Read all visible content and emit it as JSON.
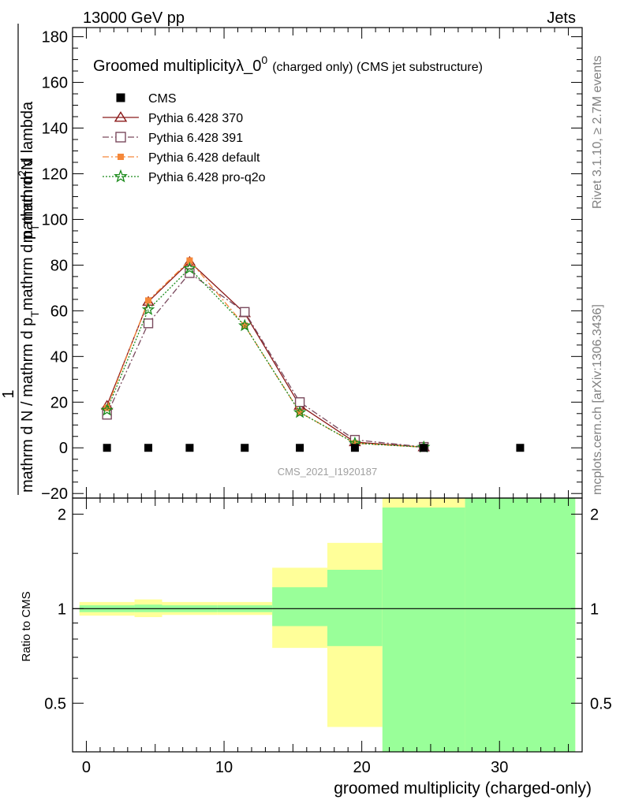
{
  "header": {
    "left": "13000 GeV pp",
    "right": "Jets"
  },
  "side_labels": {
    "rivet": "Rivet 3.1.10, ≥ 2.7M events",
    "mcplots": "mcplots.cern.ch [arXiv:1306.3436]"
  },
  "watermark": "CMS_2021_I1920187",
  "chart_data": [
    {
      "type": "line",
      "title_main": "Groomed multiplicityλ_0",
      "title_sup": "0",
      "title_suffix": "(charged only) (CMS jet substructure)",
      "ylabel_numerator": "1",
      "ylabel_fraction_top": "mathrm d",
      "ylabel_fraction_top_sup": "2",
      "ylabel_fraction_top_end": "N",
      "ylabel_denominator": "mathrm d N / mathrm d p",
      "ylabel_denominator_sub": "T",
      "ylabel_denominator_mid": "mathrm d p",
      "ylabel_denominator_mid_sub": "T",
      "ylabel_denominator_end": "mathrm d lambda",
      "xlim": [
        -1,
        36
      ],
      "ylim": [
        -22,
        184
      ],
      "yticks": [
        -20,
        0,
        20,
        40,
        60,
        80,
        100,
        120,
        140,
        160,
        180
      ],
      "legend": {
        "placement": "top-left"
      },
      "series": [
        {
          "name": "CMS",
          "color": "#000000",
          "marker": "filled-square",
          "line": "none",
          "x": [
            1.5,
            4.5,
            7.5,
            11.5,
            15.5,
            19.5,
            24.5,
            31.5
          ],
          "y": [
            0,
            0,
            0,
            0,
            0,
            0,
            0,
            0
          ]
        },
        {
          "name": "Pythia 6.428 370",
          "color": "#8b1a1a",
          "marker": "open-triangle",
          "line": "solid",
          "x": [
            1.5,
            4.5,
            7.5,
            11.5,
            15.5,
            19.5,
            24.5
          ],
          "y": [
            18.5,
            64.0,
            81.5,
            59.0,
            18.5,
            2.5,
            0.3
          ]
        },
        {
          "name": "Pythia 6.428 391",
          "color": "#7a4a5e",
          "marker": "open-square",
          "line": "dash-dot",
          "x": [
            1.5,
            4.5,
            7.5,
            11.5,
            15.5,
            19.5,
            24.5
          ],
          "y": [
            14.5,
            54.5,
            76.5,
            59.5,
            20.0,
            3.5,
            0.4
          ]
        },
        {
          "name": "Pythia 6.428 default",
          "color": "#f5883a",
          "marker": "filled-square",
          "line": "dash-dot",
          "x": [
            1.5,
            4.5,
            7.5,
            11.5,
            15.5,
            19.5,
            24.5
          ],
          "y": [
            17.5,
            64.5,
            82.0,
            53.5,
            15.5,
            2.0,
            0.3
          ]
        },
        {
          "name": "Pythia 6.428 pro-q2o",
          "color": "#1a8a1a",
          "marker": "star",
          "line": "dotted",
          "x": [
            1.5,
            4.5,
            7.5,
            11.5,
            15.5,
            19.5,
            24.5
          ],
          "y": [
            16.5,
            60.5,
            78.5,
            53.5,
            15.5,
            2.0,
            0.3
          ]
        }
      ]
    },
    {
      "type": "area",
      "ylabel": "Ratio to CMS",
      "xlabel": "groomed multiplicity (charged-only)",
      "xlim": [
        -1,
        36
      ],
      "xticks": [
        0,
        10,
        20,
        30
      ],
      "ylim": [
        0.35,
        2.25
      ],
      "yticks": [
        0.5,
        1,
        2
      ],
      "reference_line": 1,
      "bands": [
        {
          "x0": -0.5,
          "x1": 3.5,
          "inner": [
            0.975,
            1.025
          ],
          "outer": [
            0.95,
            1.05
          ]
        },
        {
          "x0": 3.5,
          "x1": 5.5,
          "inner": [
            0.975,
            1.03
          ],
          "outer": [
            0.94,
            1.07
          ]
        },
        {
          "x0": 5.5,
          "x1": 9.5,
          "inner": [
            0.975,
            1.025
          ],
          "outer": [
            0.955,
            1.05
          ]
        },
        {
          "x0": 9.5,
          "x1": 13.5,
          "inner": [
            0.975,
            1.025
          ],
          "outer": [
            0.955,
            1.05
          ]
        },
        {
          "x0": 13.5,
          "x1": 17.5,
          "inner": [
            0.88,
            1.17
          ],
          "outer": [
            0.75,
            1.35
          ]
        },
        {
          "x0": 17.5,
          "x1": 21.5,
          "inner": [
            0.76,
            1.33
          ],
          "outer": [
            0.42,
            1.62
          ]
        },
        {
          "x0": 21.5,
          "x1": 27.5,
          "inner": [
            0.35,
            2.1
          ],
          "outer": [
            0.35,
            2.25
          ]
        },
        {
          "x0": 27.5,
          "x1": 35.5,
          "inner": [
            0.35,
            2.25
          ],
          "outer": [
            0.35,
            2.25
          ]
        }
      ]
    }
  ]
}
